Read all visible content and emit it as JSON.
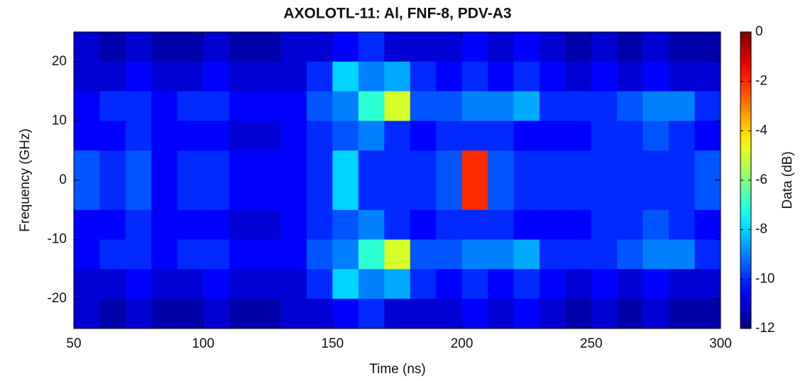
{
  "chart_data": {
    "type": "heatmap",
    "title": "AXOLOTL-11: Al, FNF-8, PDV-A3",
    "x_label": "Time (ns)",
    "y_label": "Frequency (GHz)",
    "colorbar_label": "Data (dB)",
    "x": [
      55,
      65,
      75,
      85,
      95,
      105,
      115,
      125,
      135,
      145,
      155,
      165,
      175,
      185,
      195,
      205,
      215,
      225,
      235,
      245,
      255,
      265,
      275,
      285,
      295
    ],
    "y": [
      22.5,
      17.5,
      12.5,
      7.5,
      2.5,
      -2.5,
      -7.5,
      -12.5,
      -17.5,
      -22.5
    ],
    "z": [
      [
        -11,
        -11.5,
        -11,
        -11.5,
        -11.5,
        -11,
        -11.5,
        -11.5,
        -11,
        -11,
        -10.5,
        -10,
        -11,
        -11,
        -11,
        -10.5,
        -11,
        -10.5,
        -11,
        -11.5,
        -11,
        -11.5,
        -11,
        -11.5,
        -11.5
      ],
      [
        -11,
        -11,
        -10.5,
        -11,
        -11,
        -10.5,
        -11,
        -11,
        -11,
        -10,
        -8,
        -9,
        -8.5,
        -10,
        -10.5,
        -10,
        -10.5,
        -10,
        -10.5,
        -11,
        -10.5,
        -11,
        -10.5,
        -11,
        -11
      ],
      [
        -10.5,
        -10,
        -10,
        -10.5,
        -10,
        -10,
        -10.5,
        -10.5,
        -10.5,
        -9.5,
        -9,
        -7,
        -5,
        -9.5,
        -9.5,
        -9,
        -9,
        -8.5,
        -10,
        -10,
        -10,
        -9.5,
        -9,
        -9,
        -10
      ],
      [
        -10.5,
        -10.5,
        -10,
        -10.5,
        -10.5,
        -10.5,
        -11,
        -11,
        -10.5,
        -10,
        -9.5,
        -9,
        -10,
        -10.5,
        -10,
        -10,
        -10,
        -10.5,
        -10.5,
        -10.5,
        -10,
        -10,
        -9.5,
        -10,
        -10.5
      ],
      [
        -9.5,
        -10,
        -9.5,
        -10.5,
        -10,
        -10,
        -10.5,
        -10.5,
        -10.5,
        -10,
        -8,
        -10,
        -10,
        -10,
        -9.5,
        -2,
        -9.5,
        -10,
        -10,
        -10,
        -10,
        -10,
        -10,
        -10,
        -9.5
      ],
      [
        -9.5,
        -10,
        -9.5,
        -10.5,
        -10,
        -10,
        -10.5,
        -10.5,
        -10.5,
        -10,
        -8,
        -10,
        -10,
        -10,
        -9.5,
        -2,
        -9.5,
        -10,
        -10,
        -10,
        -10,
        -10,
        -10,
        -10,
        -9.5
      ],
      [
        -10.5,
        -10.5,
        -10,
        -10.5,
        -10.5,
        -10.5,
        -11,
        -11,
        -10.5,
        -10,
        -9.5,
        -9,
        -10,
        -10.5,
        -10,
        -10,
        -10,
        -10.5,
        -10.5,
        -10.5,
        -10,
        -10,
        -9.5,
        -10,
        -10.5
      ],
      [
        -10.5,
        -10,
        -10,
        -10.5,
        -10,
        -10,
        -10.5,
        -10.5,
        -10.5,
        -9.5,
        -9,
        -7,
        -5,
        -9.5,
        -9.5,
        -9,
        -9,
        -8.5,
        -10,
        -10,
        -10,
        -9.5,
        -9,
        -9,
        -10
      ],
      [
        -11,
        -11,
        -10.5,
        -11,
        -11,
        -10.5,
        -11,
        -11,
        -11,
        -10,
        -8,
        -9,
        -8.5,
        -10,
        -10.5,
        -10,
        -10.5,
        -10,
        -10.5,
        -11,
        -10.5,
        -11,
        -10.5,
        -11,
        -11
      ],
      [
        -11,
        -11.5,
        -11,
        -11.5,
        -11.5,
        -11,
        -11.5,
        -11.5,
        -11,
        -11,
        -10.5,
        -10,
        -11,
        -11,
        -11,
        -10.5,
        -11,
        -10.5,
        -11,
        -11.5,
        -11,
        -11.5,
        -11,
        -11.5,
        -11.5
      ]
    ],
    "xlim": [
      50,
      300
    ],
    "ylim": [
      -25,
      25
    ],
    "clim": [
      -12,
      0
    ],
    "xticks": [
      50,
      100,
      150,
      200,
      250,
      300
    ],
    "yticks": [
      -20,
      -10,
      0,
      10,
      20
    ],
    "cticks": [
      0,
      -2,
      -4,
      -6,
      -8,
      -10,
      -12
    ],
    "colormap": "jet"
  }
}
